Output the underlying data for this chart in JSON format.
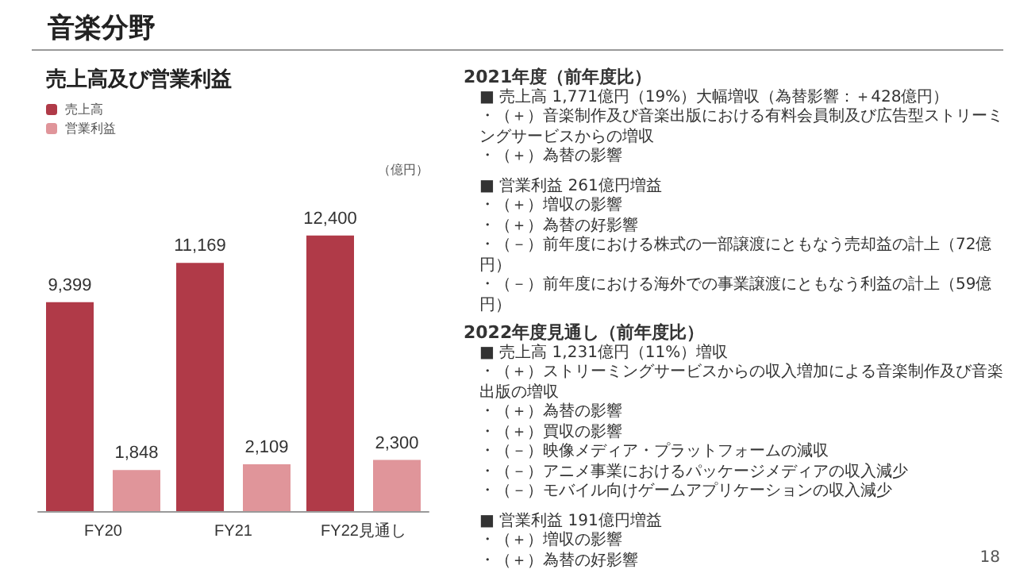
{
  "chart_data": {
    "type": "bar",
    "title": "音楽分野",
    "subtitle": "売上高及び営業利益",
    "ylabel": "（億円）",
    "categories": [
      "FY20",
      "FY21",
      "FY22見通し"
    ],
    "series": [
      {
        "name": "売上高",
        "color": "#b03a48",
        "values": [
          9399,
          11169,
          12400
        ],
        "value_labels": [
          "9,399",
          "11,169",
          "12,400"
        ]
      },
      {
        "name": "営業利益",
        "color": "#e0959a",
        "values": [
          1848,
          2109,
          2300
        ],
        "value_labels": [
          "1,848",
          "2,109",
          "2,300"
        ]
      }
    ],
    "legend": "top left",
    "grid": false,
    "annotations": [
      "2021年度（前年度比）",
      "■ 売上高 1,771億円（19%）大幅増収（為替影響：＋428億円）",
      "・（＋）音楽制作及び音楽出版における有料会員制及び広告型ストリーミングサービスからの増収",
      "・（＋）為替の影響",
      "■ 営業利益 261億円増益",
      "・（＋）増収の影響",
      "・（＋）為替の好影響",
      "・（－）前年度における株式の一部譲渡にともなう売却益の計上（72億円）",
      "・（－）前年度における海外での事業譲渡にともなう利益の計上（59億円）",
      "2022年度見通し（前年度比）",
      "■ 売上高 1,231億円（11%）増収",
      "・（＋）ストリーミングサービスからの収入増加による音楽制作及び音楽出版の増収",
      "・（＋）為替の影響",
      "・（＋）買収の影響",
      "・（－）映像メディア・プラットフォームの減収",
      "・（－）アニメ事業におけるパッケージメディアの収入減少",
      "・（－）モバイル向けゲームアプリケーションの収入減少",
      "■ 営業利益 191億円増益",
      "・（＋）増収の影響",
      "・（＋）為替の好影響",
      "18"
    ]
  }
}
